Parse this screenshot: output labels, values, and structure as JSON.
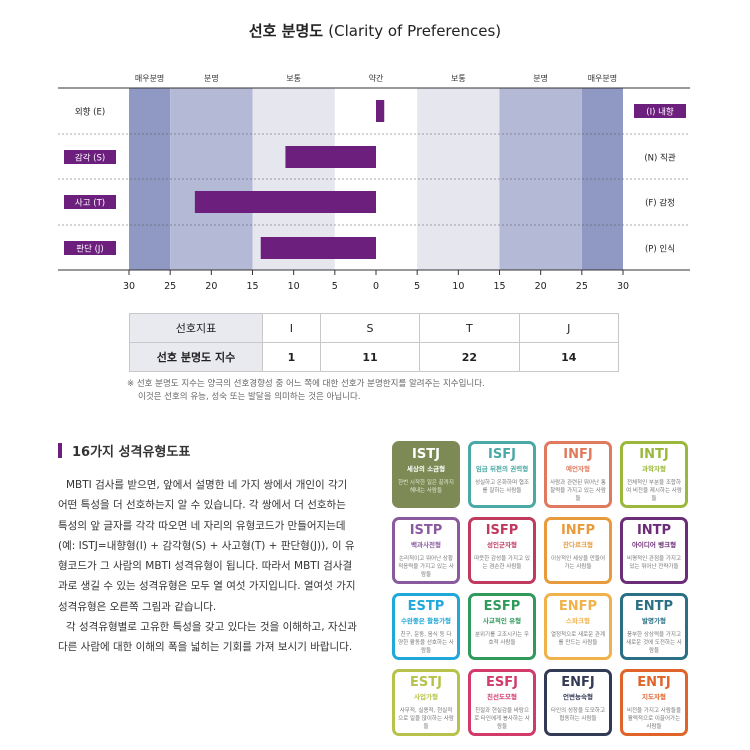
{
  "title": {
    "ko": "선호 분명도",
    "en": "(Clarity of Preferences)"
  },
  "chart_data": {
    "type": "bar",
    "orientation": "horizontal-diverging",
    "title": "선호 분명도 (Clarity of Preferences)",
    "band_labels": [
      "매우분명",
      "분명",
      "보통",
      "약간",
      "보통",
      "분명",
      "매우분명"
    ],
    "x_ticks": [
      "30",
      "25",
      "20",
      "15",
      "10",
      "5",
      "0",
      "5",
      "10",
      "15",
      "20",
      "25",
      "30"
    ],
    "xlim": [
      -30,
      30
    ],
    "left_labels": [
      "외향 (E)",
      "감각 (S)",
      "사고 (T)",
      "판단 (J)"
    ],
    "right_labels": [
      "(I) 내향",
      "(N) 직관",
      "(F) 감정",
      "(P) 인식"
    ],
    "values": [
      1,
      -11,
      -22,
      -14
    ],
    "bar_color": "#6d1f7e",
    "band_colors": [
      "#8f99c4",
      "#b4b9d6",
      "#e6e6ef",
      "#ffffff"
    ]
  },
  "index_table": {
    "header_label": "선호지표",
    "value_label": "선호 분명도 지수",
    "letters": [
      "I",
      "S",
      "T",
      "J"
    ],
    "scores": [
      "1",
      "11",
      "22",
      "14"
    ]
  },
  "note": {
    "line1": "※ 선호 분명도 지수는 양극의 선호경향성 중 어느 쪽에 대한 선호가 분명한지를 알려주는 지수입니다.",
    "line2": "이것은 선호의 유능, 성숙 또는 발달을 의미하는 것은 아닙니다."
  },
  "section": {
    "title": "16가지 성격유형도표",
    "para1": "MBTI 검사를 받으면, 앞에서 설명한 네 가지 쌍에서 개인이 각기 어떤 특성을 더 선호하는지 알 수 있습니다. 각 쌍에서 더 선호하는 특성의 앞 글자를 각각 따오면 네 자리의 유형코드가 만들어지는데(예: ISTJ=내향형(I) + 감각형(S) + 사고형(T) + 판단형(J)), 이 유형코드가 그 사람의 MBTI 성격유형이 됩니다. 따라서 MBTI 검사결과로 생길 수 있는 성격유형은 모두 열 여섯 가지입니다. 열여섯 가지 성격유형은 오른쪽 그림과 같습니다.",
    "para2": "각 성격유형별로 고유한 특성을 갖고 있다는 것을 이해하고, 자신과 다른 사람에 대한 이해의 폭을 넓히는 기회를 가져 보시기 바랍니다."
  },
  "types": [
    {
      "code": "ISTJ",
      "nick": "세상의 소금형",
      "desc": "한번 시작한 일은 끝까지 해내는 사람들",
      "color": "#7d8a55",
      "filled": true
    },
    {
      "code": "ISFJ",
      "nick": "임금 뒤편의 권력형",
      "desc": "성실하고 온화하며 협조를 잘하는 사람들",
      "color": "#4aa9a4",
      "filled": false
    },
    {
      "code": "INFJ",
      "nick": "예언자형",
      "desc": "사람과 관련된 뛰어난 통찰력을 가지고 있는 사람들",
      "color": "#e07a5f",
      "filled": false
    },
    {
      "code": "INTJ",
      "nick": "과학자형",
      "desc": "전체적인 부분을 조합하여 비전을 제시하는 사람들",
      "color": "#9bb83c",
      "filled": false
    },
    {
      "code": "ISTP",
      "nick": "백과사전형",
      "desc": "논리적이고 뛰어난 상황 적응력을 가지고 있는 사람들",
      "color": "#8a5a9e",
      "filled": false
    },
    {
      "code": "ISFP",
      "nick": "성인군자형",
      "desc": "따뜻한 감성을 가지고 있는 겸손한 사람들",
      "color": "#c0395e",
      "filled": false
    },
    {
      "code": "INFP",
      "nick": "잔다르크형",
      "desc": "이상적인 세상을 만들어 가는 사람들",
      "color": "#e89b3c",
      "filled": false
    },
    {
      "code": "INTP",
      "nick": "아이디어 뱅크형",
      "desc": "비평적인 관점을 가지고 있는 뛰어난 전략가들",
      "color": "#6b2d78",
      "filled": false
    },
    {
      "code": "ESTP",
      "nick": "수완좋은 활동가형",
      "desc": "친구, 운동, 음식 등 다양한 활동을 선호하는 사람들",
      "color": "#1fa8d8",
      "filled": false
    },
    {
      "code": "ESFP",
      "nick": "사교적인 유형",
      "desc": "분위기를 고조시키는 우호적 사람들",
      "color": "#2f9a5b",
      "filled": false
    },
    {
      "code": "ENFP",
      "nick": "스파크형",
      "desc": "열정적으로 새로운 관계를 만드는 사람들",
      "color": "#f0b24a",
      "filled": false
    },
    {
      "code": "ENTP",
      "nick": "발명가형",
      "desc": "풍부한 상상력을 가지고 새로운 것에 도전하는 사람들",
      "color": "#2a6f86",
      "filled": false
    },
    {
      "code": "ESTJ",
      "nick": "사업가형",
      "desc": "사무적, 실용적, 현실적으로 일을 많이하는 사람들",
      "color": "#b7c24b",
      "filled": false
    },
    {
      "code": "ESFJ",
      "nick": "친선도모형",
      "desc": "친절과 현실감을 바탕으로 타인에게 봉사하는 사람들",
      "color": "#d23a6a",
      "filled": false
    },
    {
      "code": "ENFJ",
      "nick": "언변능숙형",
      "desc": "타인의 성장을 도모하고 협동하는 사람들",
      "color": "#333a55",
      "filled": false
    },
    {
      "code": "ENTJ",
      "nick": "지도자형",
      "desc": "비전을 가지고 사람들을 활력적으로 이끌어가는 사람들",
      "color": "#e0642a",
      "filled": false
    }
  ]
}
